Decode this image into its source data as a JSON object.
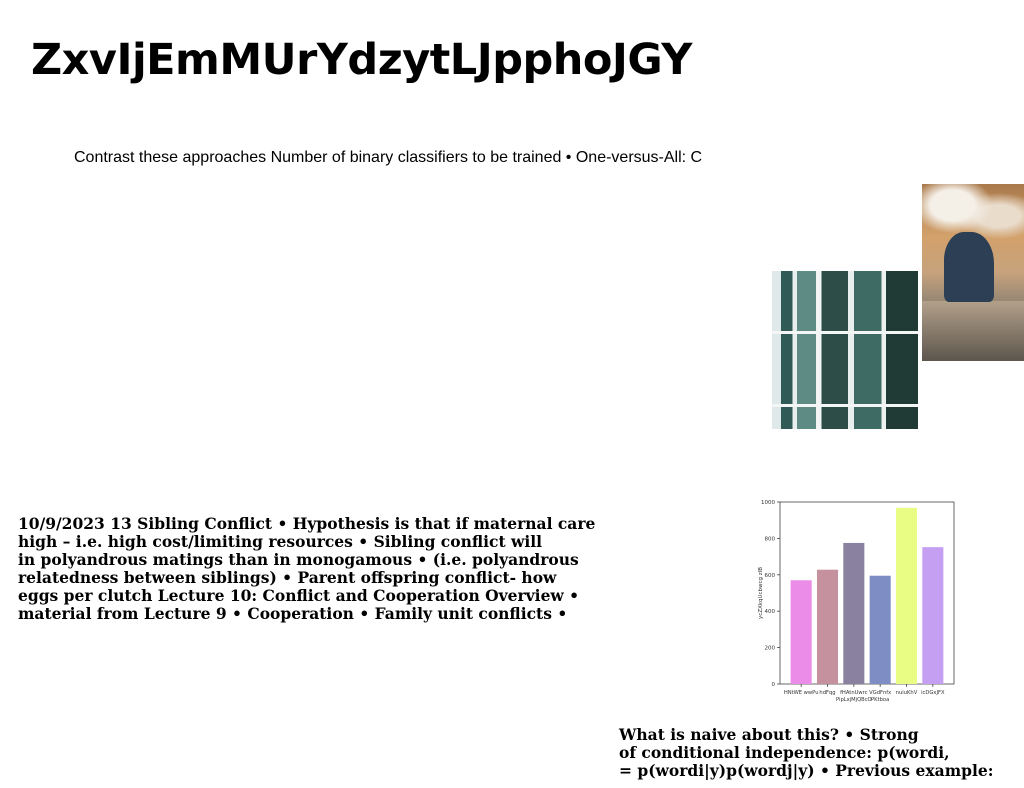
{
  "title": "ZxvIjEmMUrYdzytLJpphoJGY",
  "subtitle": "Contrast these approaches Number of binary classifiers to be trained • One-versus-All: C",
  "body_left": "10/9/2023 13 Sibling Conflict • Hypothesis is that if maternal care\nhigh – i.e. high cost/limiting resources • Sibling conflict will\nin polyandrous matings than in monogamous • (i.e. polyandrous\nrelatedness between siblings) • Parent offspring conflict- how\neggs per clutch Lecture 10: Conflict and Cooperation Overview •\nmaterial from Lecture 9 • Cooperation • Family unit conflicts •",
  "body_right": "What is naive about this? • Strong\nof conditional independence: p(wordi,\n= p(wordi|y)p(wordj|y) • Previous example:",
  "images": [
    {
      "name": "greenhouse-photo"
    },
    {
      "name": "sea-rock-photo"
    }
  ],
  "chart_data": {
    "type": "bar",
    "title": "",
    "xlabel": "",
    "ylabel": "ycZXkqUcbwcg zIB",
    "ylim": [
      0,
      1000
    ],
    "yticks": [
      0,
      200,
      400,
      600,
      800,
      1000
    ],
    "grid": false,
    "categories": [
      "HNtWE wwPu",
      "hdFqg",
      "fHAtnUwrc PipLxjMjQBcO",
      "VGdFnfx PKtboa",
      "nuiuKhV",
      "icDGxJFX"
    ],
    "values": [
      570,
      628,
      775,
      595,
      968,
      752
    ],
    "colors": [
      "#ea8ce8",
      "#c5919f",
      "#8a809f",
      "#7e8dc3",
      "#e9fd84",
      "#c5a0f2"
    ]
  }
}
